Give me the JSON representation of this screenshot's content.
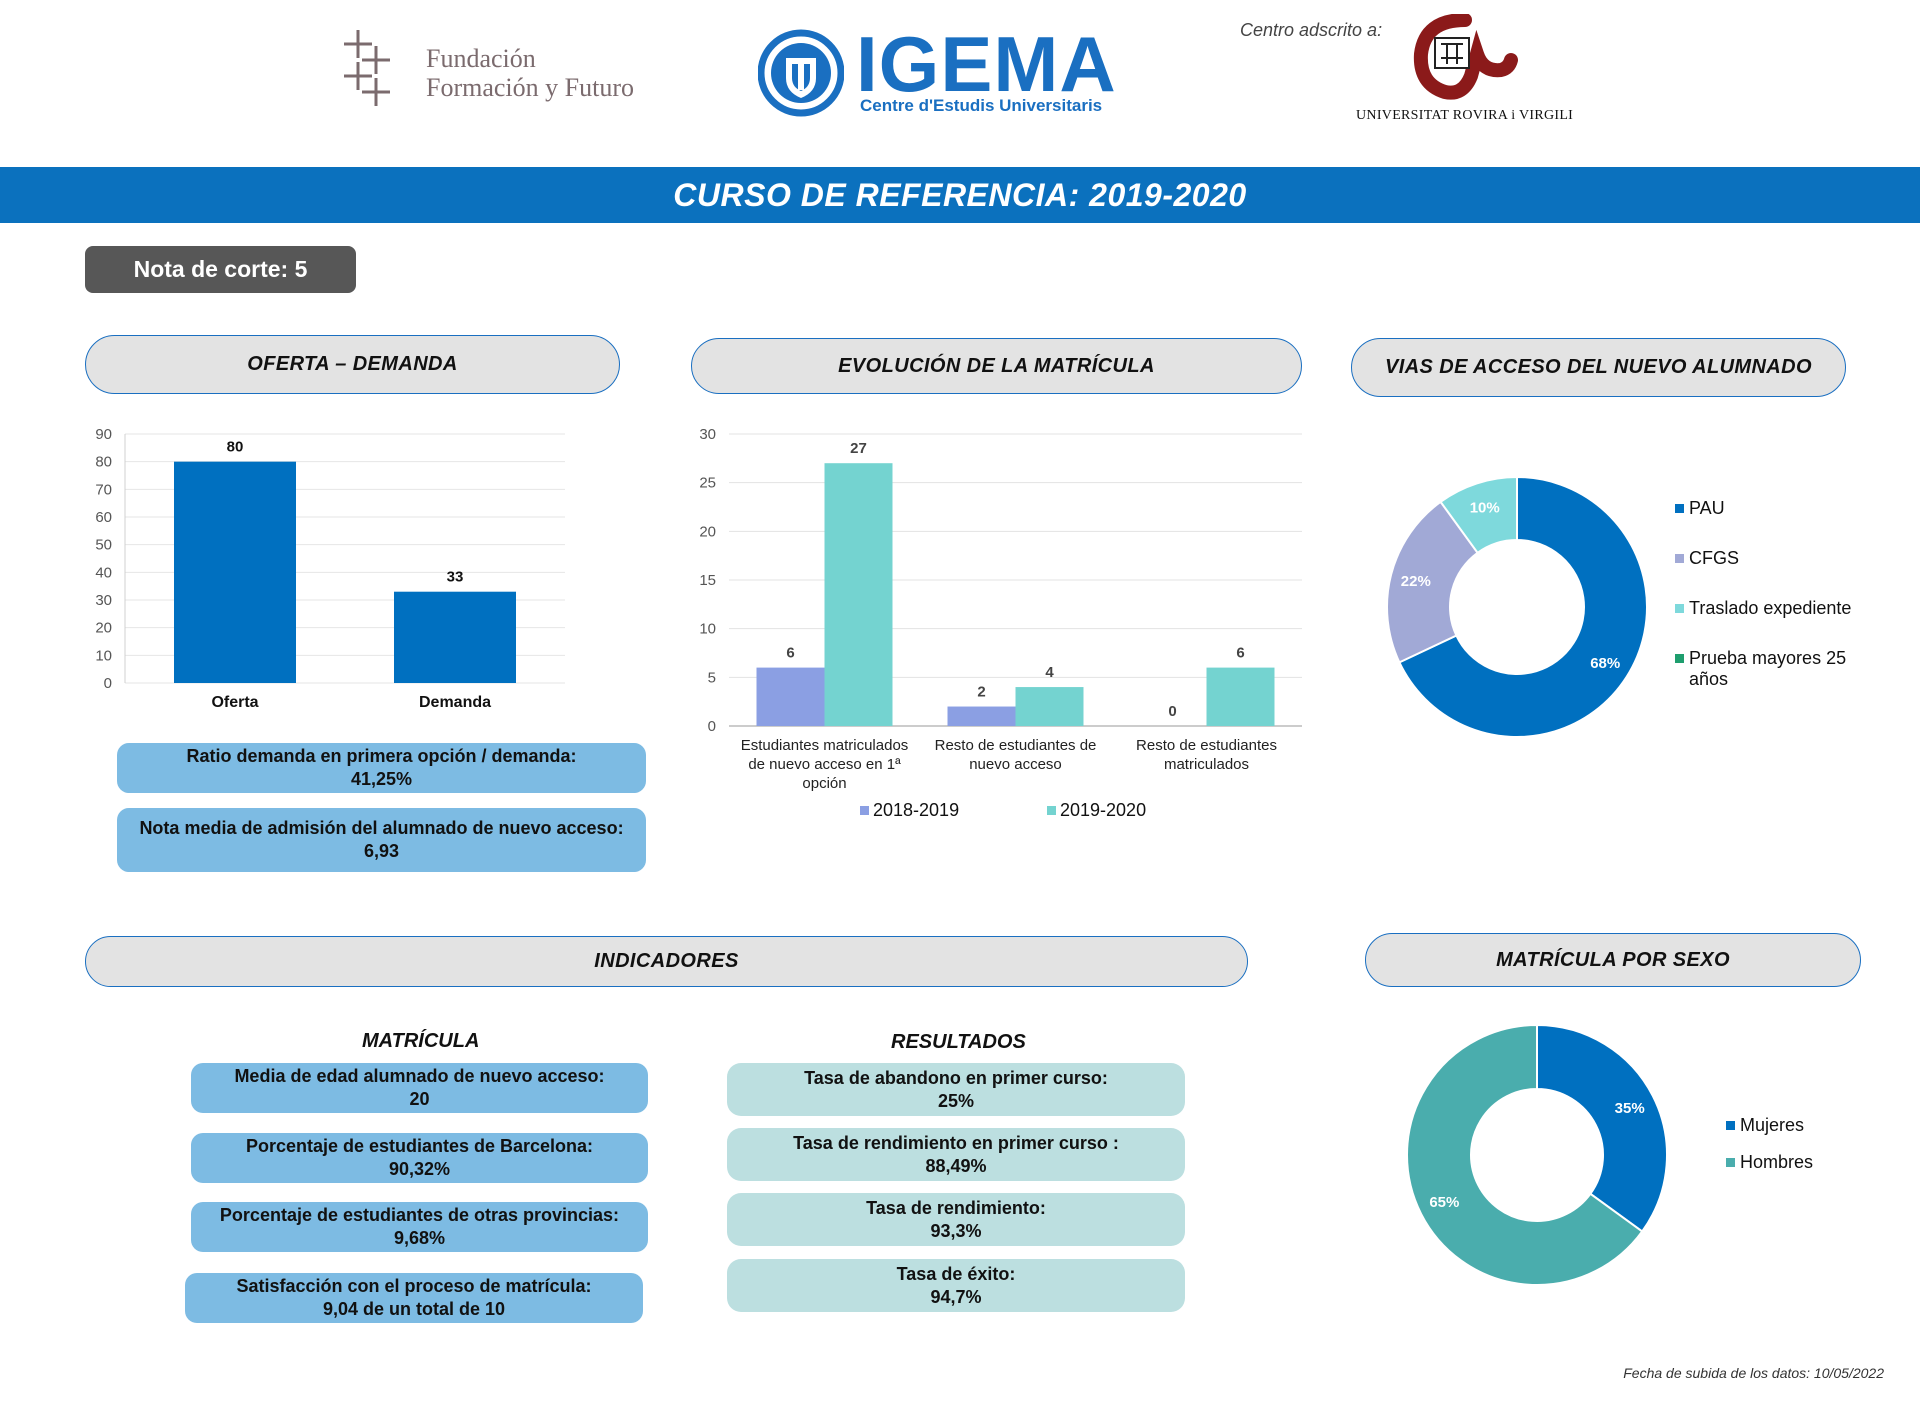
{
  "logos": {
    "fundacion_line1": "Fundación",
    "fundacion_line2": "Formación y Futuro",
    "igema_name": "IGEMA",
    "igema_subtitle": "Centre d'Estudis Universitaris",
    "adscrito_label": "Centro adscrito a:",
    "university_name": "UNIVERSITAT ROVIRA i VIRGILI"
  },
  "banner": {
    "title": "CURSO DE REFERENCIA: 2019-2020"
  },
  "nota_corte": "Nota de corte: 5",
  "sections": {
    "oferta_demanda": "OFERTA – DEMANDA",
    "evolucion": "EVOLUCIÓN DE LA MATRÍCULA",
    "vias_acceso": "VIAS DE ACCESO DEL NUEVO ALUMNADO",
    "indicadores": "INDICADORES",
    "matricula_sexo": "MATRÍCULA POR SEXO"
  },
  "oferta_boxes": [
    {
      "label": "Ratio demanda en primera opción / demanda:",
      "value": "41,25%"
    },
    {
      "label": "Nota media de admisión del alumnado de nuevo acceso:",
      "value": "6,93"
    }
  ],
  "indicadores": {
    "matricula_heading": "MATRÍCULA",
    "resultados_heading": "RESULTADOS",
    "matricula": [
      {
        "label": "Media de edad alumnado de nuevo acceso:",
        "value": "20"
      },
      {
        "label": "Porcentaje de estudiantes de Barcelona:",
        "value": "90,32%"
      },
      {
        "label": "Porcentaje de estudiantes de otras provincias:",
        "value": "9,68%"
      },
      {
        "label": "Satisfacción con el proceso de matrícula:",
        "value": "9,04 de un total de 10"
      }
    ],
    "resultados": [
      {
        "label": "Tasa de abandono en primer curso:",
        "value": "25%"
      },
      {
        "label": "Tasa de rendimiento en primer curso :",
        "value": "88,49%"
      },
      {
        "label": "Tasa de rendimiento:",
        "value": "93,3%"
      },
      {
        "label": "Tasa de éxito:",
        "value": "94,7%"
      }
    ]
  },
  "footer": "Fecha de subida de los datos: 10/05/2022",
  "colors": {
    "brand_blue": "#0b71be",
    "bar_oferta": "#0070c0",
    "series_2018": "#8b9fe3",
    "series_2019": "#74d3d0",
    "pau": "#0070c0",
    "cfgs": "#a1a9d6",
    "traslado": "#7ed9dc",
    "mayores25": "#1e9e6e",
    "mujeres": "#0070c0",
    "hombres": "#4aadad"
  },
  "chart_data": [
    {
      "id": "oferta-demanda",
      "type": "bar",
      "categories": [
        "Oferta",
        "Demanda"
      ],
      "values": [
        80,
        33
      ],
      "ylim": [
        0,
        90
      ],
      "yticks": [
        0,
        10,
        20,
        30,
        40,
        50,
        60,
        70,
        80,
        90
      ],
      "grid": true
    },
    {
      "id": "evolucion-matricula",
      "type": "bar",
      "categories": [
        [
          "Estudiantes matriculados",
          "de nuevo acceso en 1ª",
          "opción"
        ],
        [
          "Resto de estudiantes de",
          "nuevo acceso"
        ],
        [
          "Resto de estudiantes",
          "matriculados"
        ]
      ],
      "series": [
        {
          "name": "2018-2019",
          "values": [
            6,
            2,
            0
          ]
        },
        {
          "name": "2019-2020",
          "values": [
            27,
            4,
            6
          ]
        }
      ],
      "ylim": [
        0,
        30
      ],
      "yticks": [
        0,
        5,
        10,
        15,
        20,
        25,
        30
      ],
      "grid": true,
      "legend": "bottom"
    },
    {
      "id": "vias-acceso",
      "type": "pie",
      "donut": true,
      "slices": [
        {
          "label": "PAU",
          "value": 68,
          "display": "68%"
        },
        {
          "label": "CFGS",
          "value": 22,
          "display": "22%"
        },
        {
          "label": "Traslado expediente",
          "value": 10,
          "display": "10%"
        },
        {
          "label": "Prueba mayores 25 años",
          "value": 0,
          "display": ""
        }
      ],
      "legend": "right"
    },
    {
      "id": "matricula-sexo",
      "type": "pie",
      "donut": true,
      "slices": [
        {
          "label": "Mujeres",
          "value": 35,
          "display": "35%"
        },
        {
          "label": "Hombres",
          "value": 65,
          "display": "65%"
        }
      ],
      "legend": "right"
    }
  ]
}
